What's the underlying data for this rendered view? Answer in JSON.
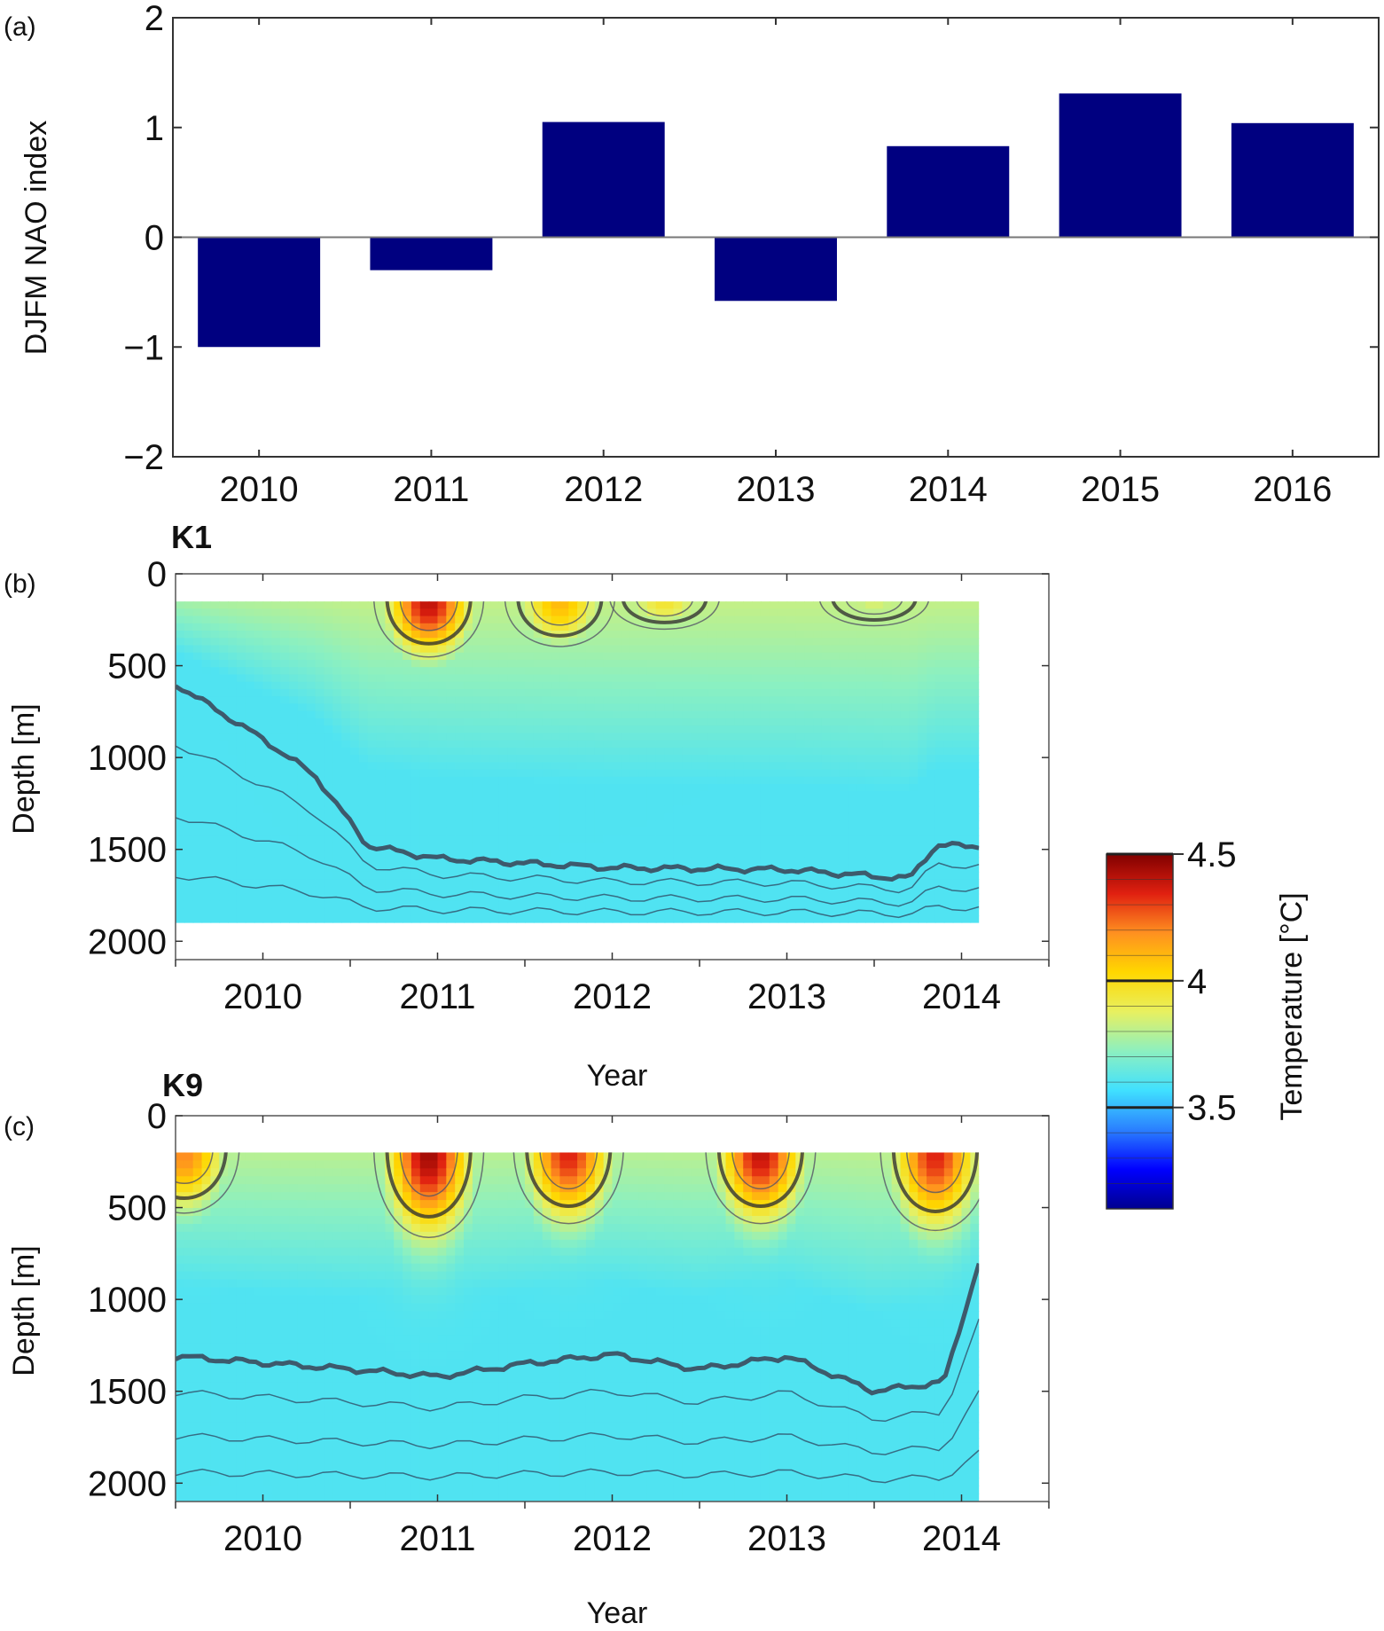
{
  "chart_data": [
    {
      "panel": "(a)",
      "type": "bar",
      "categories": [
        "2010",
        "2011",
        "2012",
        "2013",
        "2014",
        "2015",
        "2016"
      ],
      "values": [
        -1.0,
        -0.3,
        1.05,
        -0.58,
        0.83,
        1.31,
        1.04
      ],
      "ylabel": "DJFM NAO index",
      "xlabel": "",
      "ylim": [
        -2,
        2
      ],
      "yticks": [
        "−2",
        "−1",
        "0",
        "1",
        "2"
      ],
      "bar_color": "#000080",
      "grid": false
    },
    {
      "panel": "(b)",
      "title": "K1",
      "type": "heatmap",
      "xlabel": "Year",
      "ylabel": "Depth [m]",
      "xticks": [
        "2010",
        "2011",
        "2012",
        "2013",
        "2014"
      ],
      "yticks": [
        "0",
        "500",
        "1000",
        "1500",
        "2000"
      ],
      "x_range": [
        2009.5,
        2014.5
      ],
      "y_range": [
        0,
        2100
      ],
      "data_x_range": [
        2009.5,
        2014.1
      ],
      "data_depth_range": [
        150,
        1900
      ],
      "warm_cores": [
        {
          "year": 2010.95,
          "depth_top": 160,
          "depth_bottom": 480,
          "temp": 4.4
        },
        {
          "year": 2011.7,
          "depth_top": 160,
          "depth_bottom": 420,
          "temp": 4.1
        },
        {
          "year": 2012.3,
          "depth_top": 160,
          "depth_bottom": 320,
          "temp": 3.95
        },
        {
          "year": 2013.5,
          "depth_top": 160,
          "depth_bottom": 300,
          "temp": 3.85
        }
      ],
      "isotherm_3_5_depth": [
        {
          "year": 2009.5,
          "depth": 600
        },
        {
          "year": 2010.0,
          "depth": 900
        },
        {
          "year": 2010.3,
          "depth": 1100
        },
        {
          "year": 2010.6,
          "depth": 1480
        },
        {
          "year": 2011.0,
          "depth": 1550
        },
        {
          "year": 2012.0,
          "depth": 1600
        },
        {
          "year": 2013.0,
          "depth": 1610
        },
        {
          "year": 2013.7,
          "depth": 1660
        },
        {
          "year": 2013.85,
          "depth": 1480
        }
      ]
    },
    {
      "panel": "(c)",
      "title": "K9",
      "type": "heatmap",
      "xlabel": "Year",
      "ylabel": "Depth [m]",
      "xticks": [
        "2010",
        "2011",
        "2012",
        "2013",
        "2014"
      ],
      "yticks": [
        "0",
        "500",
        "1000",
        "1500",
        "2000"
      ],
      "x_range": [
        2009.5,
        2014.5
      ],
      "y_range": [
        0,
        2100
      ],
      "data_x_range": [
        2009.5,
        2014.1
      ],
      "data_depth_range": [
        200,
        2100
      ],
      "warm_cores": [
        {
          "year": 2009.55,
          "depth_top": 200,
          "depth_bottom": 560,
          "temp": 4.2
        },
        {
          "year": 2010.95,
          "depth_top": 200,
          "depth_bottom": 700,
          "temp": 4.45
        },
        {
          "year": 2011.75,
          "depth_top": 200,
          "depth_bottom": 620,
          "temp": 4.35
        },
        {
          "year": 2012.85,
          "depth_top": 200,
          "depth_bottom": 620,
          "temp": 4.4
        },
        {
          "year": 2013.85,
          "depth_top": 200,
          "depth_bottom": 660,
          "temp": 4.35
        }
      ],
      "isotherm_3_5_depth": [
        {
          "year": 2009.5,
          "depth": 1310
        },
        {
          "year": 2010.5,
          "depth": 1380
        },
        {
          "year": 2011.0,
          "depth": 1420
        },
        {
          "year": 2011.5,
          "depth": 1350
        },
        {
          "year": 2012.0,
          "depth": 1300
        },
        {
          "year": 2012.5,
          "depth": 1380
        },
        {
          "year": 2013.0,
          "depth": 1310
        },
        {
          "year": 2013.5,
          "depth": 1500
        },
        {
          "year": 2013.9,
          "depth": 1450
        },
        {
          "year": 2014.1,
          "depth": 800
        }
      ]
    },
    {
      "type": "colorbar",
      "label": "Temperature [°C]",
      "ticks": [
        "4.5",
        "4",
        "3.5"
      ],
      "range": [
        3.1,
        4.5
      ],
      "colors": [
        "#00008f",
        "#0000ff",
        "#2a7fff",
        "#40e0ff",
        "#8cf0c0",
        "#e8f060",
        "#ffd700",
        "#ff9020",
        "#e02010",
        "#800000"
      ]
    }
  ]
}
